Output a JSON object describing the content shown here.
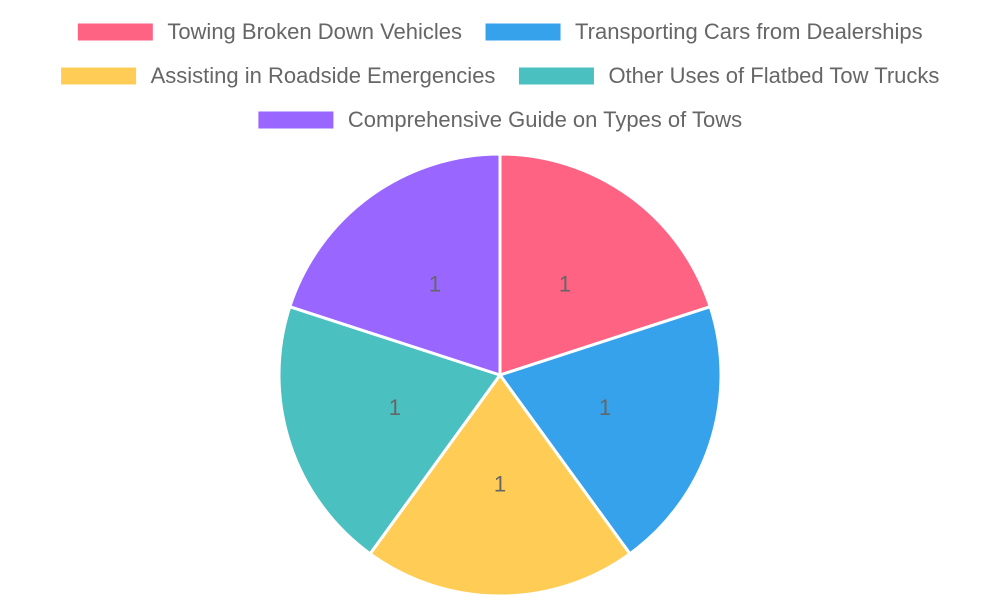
{
  "chart_data": {
    "type": "pie",
    "categories": [
      "Towing Broken Down Vehicles",
      "Transporting Cars from Dealerships",
      "Assisting in Roadside Emergencies",
      "Other Uses of Flatbed Tow Trucks",
      "Comprehensive Guide on Types of Tows"
    ],
    "values": [
      1,
      1,
      1,
      1,
      1
    ],
    "colors": [
      "#ff6384",
      "#36a2eb",
      "#ffcd56",
      "#4bc0c0",
      "#9966ff"
    ],
    "legend": "top"
  }
}
